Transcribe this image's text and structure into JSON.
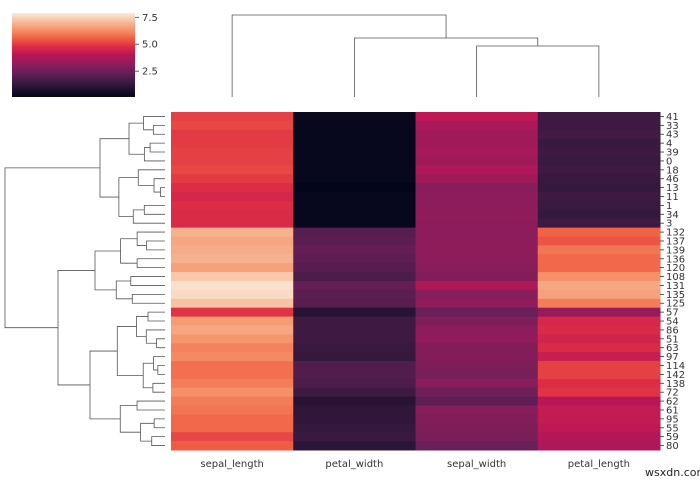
{
  "chart_data": {
    "type": "heatmap",
    "subtype": "clustermap",
    "title": "",
    "colormap": "rocket",
    "colorbar": {
      "range": [
        0.1,
        7.9
      ],
      "ticks": [
        "2.5",
        "5.0",
        "7.5"
      ],
      "tick_values": [
        2.5,
        5.0,
        7.5
      ]
    },
    "colormap_stops": [
      "#03051a",
      "#221331",
      "#451c47",
      "#6b1f58",
      "#921c5b",
      "#b91657",
      "#dd2c45",
      "#f06043",
      "#f5936a",
      "#f7be9c",
      "#faebdd"
    ],
    "columns": [
      "sepal_length",
      "petal_width",
      "sepal_width",
      "petal_length"
    ],
    "column_dendrogram": "((sepal_width, petal_length), petal_width), sepal_length",
    "rows": [
      "41",
      "33",
      "43",
      "4",
      "39",
      "0",
      "18",
      "46",
      "13",
      "11",
      "1",
      "34",
      "3",
      "132",
      "137",
      "139",
      "136",
      "120",
      "108",
      "131",
      "135",
      "125",
      "57",
      "54",
      "86",
      "51",
      "63",
      "97",
      "114",
      "142",
      "138",
      "72",
      "62",
      "61",
      "95",
      "55",
      "59",
      "80"
    ],
    "values": [
      [
        5.1,
        0.3,
        4.1,
        1.5
      ],
      [
        5.2,
        0.2,
        3.7,
        1.5
      ],
      [
        5.0,
        0.2,
        3.5,
        1.6
      ],
      [
        5.0,
        0.2,
        3.5,
        1.4
      ],
      [
        5.1,
        0.2,
        3.6,
        1.5
      ],
      [
        5.1,
        0.2,
        3.5,
        1.4
      ],
      [
        5.2,
        0.2,
        3.8,
        1.5
      ],
      [
        5.0,
        0.2,
        3.5,
        1.4
      ],
      [
        4.8,
        0.1,
        3.0,
        1.3
      ],
      [
        4.6,
        0.2,
        3.1,
        1.5
      ],
      [
        4.8,
        0.2,
        3.1,
        1.4
      ],
      [
        4.7,
        0.2,
        3.2,
        1.3
      ],
      [
        4.7,
        0.2,
        3.1,
        1.5
      ],
      [
        6.9,
        2.0,
        3.1,
        5.6
      ],
      [
        6.7,
        2.1,
        3.1,
        5.4
      ],
      [
        6.8,
        2.3,
        3.2,
        5.9
      ],
      [
        6.9,
        2.2,
        3.1,
        5.7
      ],
      [
        6.6,
        2.0,
        3.0,
        5.7
      ],
      [
        7.3,
        1.8,
        2.9,
        6.3
      ],
      [
        7.7,
        2.3,
        3.8,
        6.7
      ],
      [
        7.6,
        2.1,
        3.0,
        6.6
      ],
      [
        7.2,
        2.0,
        3.2,
        6.0
      ],
      [
        4.9,
        1.0,
        2.4,
        3.3
      ],
      [
        6.5,
        1.5,
        2.8,
        4.6
      ],
      [
        6.7,
        1.5,
        3.1,
        4.7
      ],
      [
        6.4,
        1.5,
        3.2,
        4.5
      ],
      [
        6.1,
        1.4,
        2.9,
        4.7
      ],
      [
        6.2,
        1.3,
        2.9,
        4.3
      ],
      [
        5.8,
        1.9,
        2.8,
        5.1
      ],
      [
        5.8,
        1.9,
        2.7,
        5.1
      ],
      [
        6.0,
        1.8,
        3.0,
        4.8
      ],
      [
        6.3,
        1.5,
        2.5,
        4.9
      ],
      [
        6.0,
        1.0,
        2.2,
        4.0
      ],
      [
        5.9,
        1.2,
        3.0,
        4.2
      ],
      [
        5.7,
        1.2,
        2.9,
        4.2
      ],
      [
        5.7,
        1.3,
        2.8,
        4.1
      ],
      [
        5.2,
        1.4,
        2.7,
        3.9
      ],
      [
        5.5,
        1.1,
        2.4,
        3.8
      ]
    ],
    "row_groups": [
      13,
      9,
      16
    ]
  },
  "watermark": "wsxdn.com"
}
